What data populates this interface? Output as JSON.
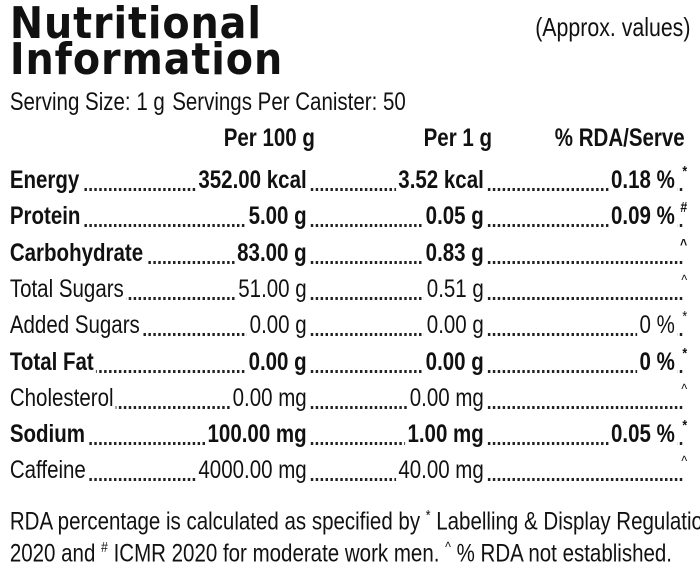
{
  "header": {
    "title": [
      "Nutritional",
      "Information"
    ],
    "note": "(Approx. values)",
    "serving_size": "Serving Size: 1 g",
    "servings_per_canister": "Servings Per Canister: 50"
  },
  "table": {
    "columns": [
      "Per 100 g",
      "Per 1 g",
      "% RDA/Serve"
    ],
    "rows": [
      {
        "name": "Energy",
        "per_100g": "352.00 kcal",
        "per_1g": "3.52 kcal",
        "rda": "0.18 %",
        "mark": "*",
        "bold": true
      },
      {
        "name": "Protein",
        "per_100g": "5.00 g",
        "per_1g": "0.05 g",
        "rda": "0.09 %",
        "mark": "#",
        "bold": true
      },
      {
        "name": "Carbohydrate",
        "per_100g": "83.00 g",
        "per_1g": "0.83 g",
        "mark": "^",
        "bold": true
      },
      {
        "name": "Total Sugars",
        "per_100g": "51.00 g",
        "per_1g": "0.51 g",
        "mark": "^",
        "bold": false
      },
      {
        "name": "Added Sugars",
        "per_100g": "0.00 g",
        "per_1g": "0.00 g",
        "rda": "0 %",
        "mark": "*",
        "bold": false
      },
      {
        "name": "Total Fat",
        "per_100g": "0.00 g",
        "per_1g": "0.00 g",
        "rda": "0 %",
        "mark": "*",
        "bold": true
      },
      {
        "name": "Cholesterol",
        "per_100g": "0.00 mg",
        "per_1g": "0.00 mg",
        "mark": "^",
        "bold": false
      },
      {
        "name": "Sodium",
        "per_100g": "100.00 mg",
        "per_1g": "1.00 mg",
        "rda": "0.05 %",
        "mark": "*",
        "bold": true
      },
      {
        "name": "Caffeine",
        "per_100g": "4000.00 mg",
        "per_1g": "40.00 mg",
        "mark": "^",
        "bold": false
      }
    ]
  },
  "footer": [
    "RDA percentage is calculated as specified by ",
    "*",
    " Labelling & Display Regulation",
    "2020 and ",
    "#",
    " ICMR 2020 for moderate work men. ",
    "^",
    " % RDA not established."
  ]
}
